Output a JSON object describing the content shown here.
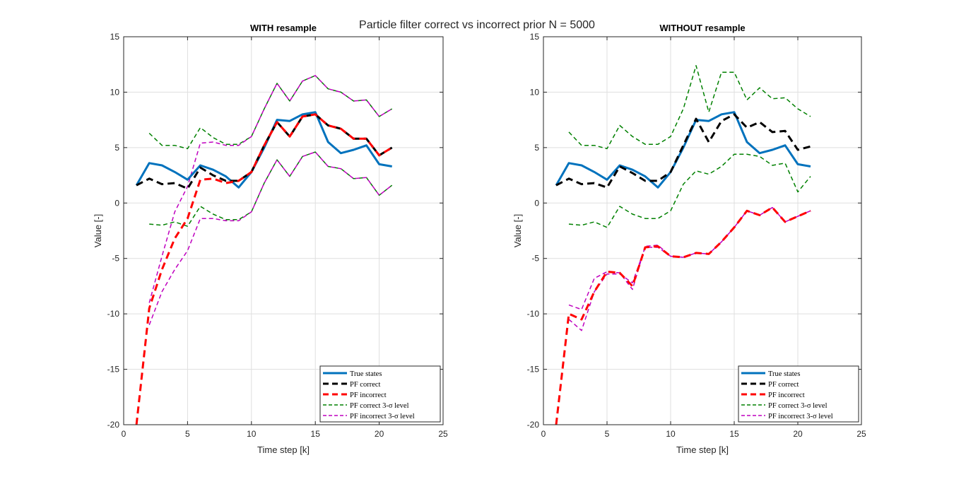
{
  "figure": {
    "suptitle": "Particle filter correct vs incorrect prior N = 5000"
  },
  "chart_data": [
    {
      "type": "line",
      "title": "WITH resample",
      "xlabel": "Time step [k]",
      "ylabel": "Value [-]",
      "xlim": [
        0,
        25
      ],
      "ylim": [
        -20,
        15
      ],
      "xticks": [
        0,
        5,
        10,
        15,
        20,
        25
      ],
      "yticks": [
        -20,
        -15,
        -10,
        -5,
        0,
        5,
        10,
        15
      ],
      "grid": true,
      "legend_position": "bottom-right",
      "series": [
        {
          "name": "True states",
          "color": "#0072BD",
          "style": "solid",
          "width": 3,
          "x": [
            1,
            2,
            3,
            4,
            5,
            6,
            7,
            8,
            9,
            10,
            11,
            12,
            13,
            14,
            15,
            16,
            17,
            18,
            19,
            20,
            21
          ],
          "y": [
            1.6,
            3.6,
            3.4,
            2.8,
            2.1,
            3.4,
            3.0,
            2.4,
            1.4,
            2.8,
            5.0,
            7.5,
            7.4,
            8.0,
            8.2,
            5.5,
            4.5,
            4.8,
            5.2,
            3.5,
            3.3
          ]
        },
        {
          "name": "PF correct",
          "color": "#000000",
          "style": "dashed",
          "width": 3,
          "x": [
            1,
            2,
            3,
            4,
            5,
            6,
            7,
            8,
            9,
            10,
            11,
            12,
            13,
            14,
            15,
            16,
            17,
            18,
            19,
            20,
            21
          ],
          "y": [
            1.6,
            2.2,
            1.7,
            1.8,
            1.3,
            3.2,
            2.5,
            2.0,
            2.0,
            2.8,
            5.2,
            7.3,
            6.0,
            7.8,
            8.0,
            7.0,
            6.7,
            5.8,
            5.8,
            4.3,
            5.0
          ]
        },
        {
          "name": "PF incorrect",
          "color": "#FF0000",
          "style": "dashed",
          "width": 3,
          "x": [
            1,
            2,
            3,
            4,
            5,
            6,
            7,
            8,
            9,
            10,
            11,
            12,
            13,
            14,
            15,
            16,
            17,
            18,
            19,
            20,
            21
          ],
          "y": [
            -20,
            -9.5,
            -6.0,
            -3.2,
            -1.4,
            2.1,
            2.2,
            1.8,
            2.0,
            2.8,
            5.2,
            7.3,
            6.0,
            7.8,
            8.0,
            7.0,
            6.7,
            5.8,
            5.8,
            4.3,
            5.0
          ]
        },
        {
          "name": "PF correct 3-σ level",
          "color": "#008000",
          "style": "dashed",
          "width": 1.5,
          "x": [
            2,
            3,
            4,
            5,
            6,
            7,
            8,
            9,
            10,
            11,
            12,
            13,
            14,
            15,
            16,
            17,
            18,
            19,
            20,
            21
          ],
          "y": [
            6.3,
            5.2,
            5.2,
            4.9,
            6.8,
            5.9,
            5.3,
            5.3,
            6.0,
            8.5,
            10.8,
            9.2,
            11.0,
            11.5,
            10.3,
            10.0,
            9.2,
            9.3,
            7.8,
            8.5
          ]
        },
        {
          "name": "PF correct 3-σ level lower",
          "color": "#008000",
          "style": "dashed",
          "width": 1.5,
          "x": [
            2,
            3,
            4,
            5,
            6,
            7,
            8,
            9,
            10,
            11,
            12,
            13,
            14,
            15,
            16,
            17,
            18,
            19,
            20,
            21
          ],
          "y": [
            -1.9,
            -2.0,
            -1.7,
            -2.1,
            -0.3,
            -1.0,
            -1.5,
            -1.5,
            -0.8,
            1.8,
            3.9,
            2.4,
            4.2,
            4.6,
            3.3,
            3.1,
            2.2,
            2.3,
            0.7,
            1.6
          ]
        },
        {
          "name": "PF incorrect 3-σ level",
          "color": "#BF00BF",
          "style": "dashed",
          "width": 1.5,
          "x": [
            2,
            3,
            4,
            5,
            6,
            7,
            8,
            9,
            10,
            11,
            12,
            13,
            14,
            15,
            16,
            17,
            18,
            19,
            20,
            21
          ],
          "y": [
            -9.0,
            -4.8,
            -0.8,
            1.5,
            5.4,
            5.5,
            5.2,
            5.2,
            6.0,
            8.5,
            10.8,
            9.2,
            11.0,
            11.5,
            10.3,
            10.0,
            9.2,
            9.3,
            7.8,
            8.5
          ]
        },
        {
          "name": "PF incorrect 3-σ level lower",
          "color": "#BF00BF",
          "style": "dashed",
          "width": 1.5,
          "x": [
            2,
            3,
            4,
            5,
            6,
            7,
            8,
            9,
            10,
            11,
            12,
            13,
            14,
            15,
            16,
            17,
            18,
            19,
            20,
            21
          ],
          "y": [
            -11.0,
            -8.0,
            -6.0,
            -4.3,
            -1.4,
            -1.4,
            -1.6,
            -1.6,
            -0.8,
            1.8,
            3.9,
            2.4,
            4.2,
            4.6,
            3.3,
            3.1,
            2.2,
            2.3,
            0.7,
            1.6
          ]
        }
      ]
    },
    {
      "type": "line",
      "title": "WITHOUT resample",
      "xlabel": "Time step [k]",
      "ylabel": "Value [-]",
      "xlim": [
        0,
        25
      ],
      "ylim": [
        -20,
        15
      ],
      "xticks": [
        0,
        5,
        10,
        15,
        20,
        25
      ],
      "yticks": [
        -20,
        -15,
        -10,
        -5,
        0,
        5,
        10,
        15
      ],
      "grid": true,
      "legend_position": "bottom-right",
      "series": [
        {
          "name": "True states",
          "color": "#0072BD",
          "style": "solid",
          "width": 3,
          "x": [
            1,
            2,
            3,
            4,
            5,
            6,
            7,
            8,
            9,
            10,
            11,
            12,
            13,
            14,
            15,
            16,
            17,
            18,
            19,
            20,
            21
          ],
          "y": [
            1.6,
            3.6,
            3.4,
            2.8,
            2.1,
            3.4,
            3.0,
            2.4,
            1.4,
            2.8,
            5.0,
            7.5,
            7.4,
            8.0,
            8.2,
            5.5,
            4.5,
            4.8,
            5.2,
            3.5,
            3.3
          ]
        },
        {
          "name": "PF correct",
          "color": "#000000",
          "style": "dashed",
          "width": 3,
          "x": [
            1,
            2,
            3,
            4,
            5,
            6,
            7,
            8,
            9,
            10,
            11,
            12,
            13,
            14,
            15,
            16,
            17,
            18,
            19,
            20,
            21
          ],
          "y": [
            1.6,
            2.2,
            1.7,
            1.8,
            1.4,
            3.3,
            2.7,
            2.0,
            2.0,
            2.8,
            5.2,
            7.6,
            5.5,
            7.4,
            8.0,
            6.8,
            7.3,
            6.4,
            6.5,
            4.8,
            5.1
          ]
        },
        {
          "name": "PF incorrect",
          "color": "#FF0000",
          "style": "dashed",
          "width": 3,
          "x": [
            1,
            2,
            3,
            4,
            5,
            6,
            7,
            8,
            9,
            10,
            11,
            12,
            13,
            14,
            15,
            16,
            17,
            18,
            19,
            20,
            21
          ],
          "y": [
            -20,
            -10.0,
            -10.5,
            -8.0,
            -6.2,
            -6.3,
            -7.5,
            -4.0,
            -3.9,
            -4.8,
            -4.9,
            -4.5,
            -4.6,
            -3.5,
            -2.2,
            -0.7,
            -1.1,
            -0.4,
            -1.7,
            -1.2,
            -0.7
          ]
        },
        {
          "name": "PF correct 3-σ level",
          "color": "#008000",
          "style": "dashed",
          "width": 1.5,
          "x": [
            2,
            3,
            4,
            5,
            6,
            7,
            8,
            9,
            10,
            11,
            12,
            13,
            14,
            15,
            16,
            17,
            18,
            19,
            20,
            21
          ],
          "y": [
            6.4,
            5.2,
            5.2,
            4.9,
            7.0,
            6.0,
            5.3,
            5.3,
            6.0,
            8.5,
            12.4,
            8.2,
            11.8,
            11.8,
            9.3,
            10.4,
            9.4,
            9.5,
            8.5,
            7.8
          ]
        },
        {
          "name": "PF correct 3-σ level lower",
          "color": "#008000",
          "style": "dashed",
          "width": 1.5,
          "x": [
            2,
            3,
            4,
            5,
            6,
            7,
            8,
            9,
            10,
            11,
            12,
            13,
            14,
            15,
            16,
            17,
            18,
            19,
            20,
            21
          ],
          "y": [
            -1.9,
            -2.0,
            -1.7,
            -2.2,
            -0.3,
            -1.0,
            -1.4,
            -1.4,
            -0.7,
            1.7,
            2.9,
            2.6,
            3.3,
            4.4,
            4.4,
            4.2,
            3.4,
            3.6,
            1.0,
            2.4
          ]
        },
        {
          "name": "PF incorrect 3-σ level",
          "color": "#BF00BF",
          "style": "dashed",
          "width": 1.5,
          "x": [
            2,
            3,
            4,
            5,
            6,
            7,
            8,
            9,
            10,
            11,
            12,
            13,
            14,
            15,
            16,
            17,
            18,
            19,
            20,
            21
          ],
          "y": [
            -9.2,
            -9.6,
            -6.8,
            -6.2,
            -6.3,
            -7.8,
            -3.9,
            -3.8,
            -4.8,
            -4.9,
            -4.5,
            -4.6,
            -3.5,
            -2.2,
            -0.7,
            -1.1,
            -0.4,
            -1.7,
            -1.2,
            -0.7
          ]
        },
        {
          "name": "PF incorrect 3-σ level lower",
          "color": "#BF00BF",
          "style": "dashed",
          "width": 1.5,
          "x": [
            2,
            3,
            4,
            5,
            6,
            7,
            8,
            9,
            10,
            11,
            12,
            13,
            14,
            15,
            16,
            17,
            18,
            19,
            20,
            21
          ],
          "y": [
            -10.5,
            -11.5,
            -8.0,
            -6.4,
            -6.4,
            -7.2,
            -4.0,
            -4.0,
            -4.8,
            -4.9,
            -4.5,
            -4.6,
            -3.5,
            -2.2,
            -0.7,
            -1.1,
            -0.4,
            -1.7,
            -1.2,
            -0.7
          ]
        }
      ],
      "legend": [
        "True states",
        "PF correct",
        "PF incorrect",
        "PF correct 3-σ level",
        "PF incorrect 3-σ level"
      ]
    }
  ]
}
